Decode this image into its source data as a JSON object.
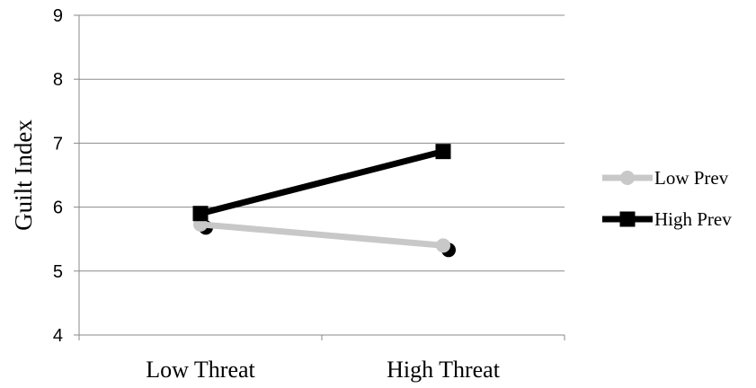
{
  "chart_data": {
    "type": "line",
    "title": "",
    "xlabel": "",
    "ylabel": "Guilt Index",
    "categories": [
      "Low Threat",
      "High Threat"
    ],
    "ylim": [
      4,
      9
    ],
    "yticks": [
      4,
      5,
      6,
      7,
      8,
      9
    ],
    "grid": true,
    "legend_position": "right",
    "series": [
      {
        "name": "Low Prev",
        "values": [
          5.73,
          5.4
        ],
        "color": "#c8c8c8",
        "marker": "circle",
        "shadow_values": [
          5.68,
          5.33
        ]
      },
      {
        "name": "High Prev",
        "values": [
          5.9,
          6.87
        ],
        "color": "#000000",
        "marker": "square"
      }
    ]
  }
}
